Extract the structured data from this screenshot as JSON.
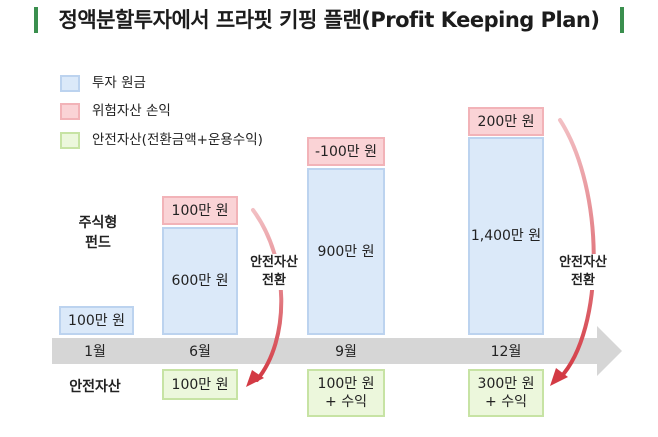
{
  "title": "정액분할투자에서 프라핏 키핑 플랜(Profit Keeping Plan)",
  "legend": [
    {
      "label": "투자 원금",
      "color": "#dbe9f9"
    },
    {
      "label": "위험자산 손익",
      "color": "#fad3d6"
    },
    {
      "label": "안전자산(전환금액+운용수익)",
      "color": "#ecf7dc"
    }
  ],
  "row_labels": {
    "fund": "주식형\n펀드",
    "safe": "안전자산"
  },
  "timeline": [
    "1월",
    "6월",
    "9월",
    "12월"
  ],
  "columns": [
    {
      "principal": "100만 원"
    },
    {
      "principal": "600만 원",
      "pnl": "100만 원",
      "safe": "100만 원"
    },
    {
      "principal": "900만 원",
      "pnl": "-100만 원",
      "safe": "100만 원\n+ 수익"
    },
    {
      "principal": "1,400만 원",
      "pnl": "200만 원",
      "safe": "300만 원\n+ 수익"
    }
  ],
  "transfer_label": "안전자산\n전환",
  "colors": {
    "title_accent": "#3a8f4e",
    "arrow": "#d33a44",
    "timeline": "#d6d6d6"
  }
}
